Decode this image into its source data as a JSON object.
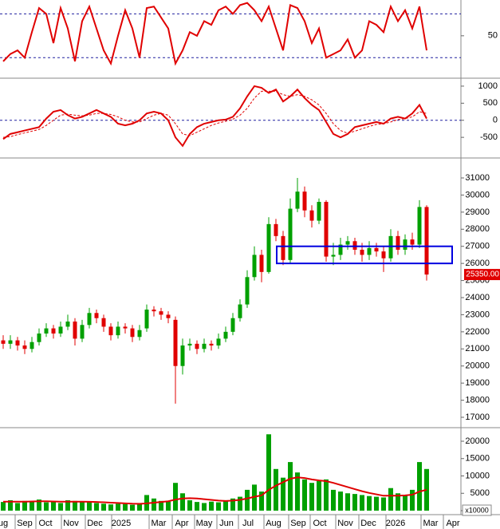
{
  "chart_data": [
    {
      "type": "line",
      "ylim": [
        -7,
        99
      ],
      "yticks": [
        50
      ],
      "levels": [
        20,
        80
      ],
      "series": [
        {
          "color": "#e00000",
          "values": [
            15,
            25,
            30,
            20,
            55,
            88,
            80,
            40,
            88,
            60,
            15,
            70,
            90,
            60,
            30,
            12,
            50,
            85,
            60,
            20,
            88,
            90,
            75,
            60,
            12,
            30,
            55,
            50,
            70,
            65,
            85,
            90,
            80,
            92,
            95,
            85,
            70,
            90,
            60,
            30,
            92,
            88,
            70,
            40,
            60,
            20,
            25,
            30,
            45,
            20,
            30,
            70,
            65,
            55,
            90,
            70,
            85,
            60,
            90,
            30
          ]
        }
      ]
    },
    {
      "type": "line",
      "ylim": [
        -1081,
        1209
      ],
      "yticks": [
        1000,
        500,
        0,
        -500
      ],
      "levels": [
        0
      ],
      "series": [
        {
          "color": "#e00000",
          "values": [
            -550,
            -400,
            -350,
            -300,
            -250,
            -200,
            50,
            250,
            300,
            150,
            50,
            100,
            200,
            300,
            200,
            100,
            -100,
            -150,
            -100,
            0,
            200,
            250,
            200,
            0,
            -500,
            -750,
            -400,
            -200,
            -100,
            -50,
            0,
            20,
            100,
            350,
            700,
            1000,
            950,
            800,
            900,
            550,
            700,
            900,
            650,
            450,
            300,
            -50,
            -400,
            -500,
            -400,
            -200,
            -150,
            -100,
            -50,
            -100,
            50,
            100,
            50,
            200,
            450,
            50
          ]
        },
        {
          "color": "#e00000",
          "dashed": true,
          "values": [
            -500,
            -480,
            -420,
            -370,
            -320,
            -270,
            -150,
            0,
            150,
            180,
            150,
            130,
            150,
            200,
            200,
            170,
            100,
            0,
            -50,
            -50,
            50,
            150,
            200,
            150,
            -100,
            -400,
            -450,
            -350,
            -250,
            -150,
            -80,
            -30,
            30,
            150,
            350,
            650,
            850,
            850,
            850,
            750,
            700,
            750,
            700,
            600,
            450,
            200,
            -100,
            -300,
            -380,
            -320,
            -250,
            -180,
            -120,
            -100,
            -50,
            20,
            50,
            100,
            250,
            200
          ]
        }
      ]
    },
    {
      "type": "candlestick",
      "ylim": [
        16440,
        32120
      ],
      "yticks": [
        31000,
        30000,
        29000,
        28000,
        27000,
        26000,
        25000,
        24000,
        23000,
        22000,
        21000,
        20000,
        19000,
        18000,
        17000
      ],
      "up_color": "#00a000",
      "down_color": "#e00000",
      "open": [
        21500,
        21300,
        21500,
        21200,
        21000,
        21400,
        21900,
        22200,
        21900,
        22300,
        22600,
        21600,
        22400,
        23100,
        22800,
        22300,
        21800,
        22300,
        22200,
        21700,
        22200,
        23300,
        23200,
        23000,
        22700,
        20000,
        21200,
        21300,
        21000,
        21300,
        21200,
        21600,
        22000,
        22800,
        23600,
        25200,
        26500,
        25500,
        28300,
        27600,
        26200,
        29200,
        30200,
        29100,
        28500,
        29600,
        26400,
        26500,
        27100,
        27300,
        26800,
        26500,
        26900,
        26700,
        26300,
        27600,
        26800,
        27400,
        27100,
        29300
      ],
      "high": [
        21800,
        21800,
        21700,
        21500,
        21700,
        22200,
        22500,
        22400,
        22600,
        23000,
        22800,
        22700,
        23400,
        23300,
        23000,
        22500,
        22600,
        22500,
        22400,
        22400,
        23600,
        23500,
        23400,
        23200,
        22900,
        21600,
        21600,
        21500,
        21600,
        21500,
        21900,
        22300,
        23100,
        23900,
        25600,
        27000,
        26800,
        28700,
        28600,
        27900,
        29800,
        31000,
        30500,
        29400,
        29800,
        29700,
        27200,
        27500,
        27600,
        27500,
        27200,
        27300,
        27200,
        27000,
        28000,
        27900,
        27700,
        27800,
        29700,
        29400
      ],
      "low": [
        21000,
        21000,
        20900,
        20700,
        20800,
        21200,
        21700,
        21600,
        21700,
        22100,
        21200,
        21400,
        22200,
        22500,
        22000,
        21500,
        21600,
        21900,
        21400,
        21500,
        22000,
        22900,
        22700,
        22500,
        17800,
        19500,
        20900,
        20700,
        20800,
        20900,
        21000,
        21400,
        21800,
        22600,
        23400,
        25000,
        24900,
        25400,
        27300,
        25900,
        26000,
        29000,
        28700,
        28100,
        28300,
        26100,
        25900,
        26200,
        26800,
        26500,
        26100,
        26200,
        26400,
        25500,
        26100,
        26500,
        26500,
        26800,
        26900,
        25000
      ],
      "close": [
        21300,
        21500,
        21200,
        21000,
        21400,
        21900,
        22200,
        21900,
        22300,
        22600,
        21600,
        22400,
        23100,
        22800,
        22300,
        21800,
        22300,
        22200,
        21700,
        22100,
        23300,
        23200,
        23000,
        22800,
        20000,
        21200,
        21300,
        21000,
        21300,
        21200,
        21600,
        22000,
        22800,
        23600,
        25200,
        26500,
        25500,
        28300,
        27600,
        26200,
        29200,
        30200,
        29100,
        28500,
        29600,
        26400,
        26500,
        27100,
        27300,
        26800,
        26500,
        26900,
        26700,
        26300,
        27600,
        26800,
        27400,
        27100,
        29300,
        25350
      ],
      "box": {
        "low": 26000,
        "high": 27000,
        "color": "#0000e0"
      },
      "last_price": {
        "value": 25350,
        "label": "25350.00"
      }
    },
    {
      "type": "bar",
      "ylim": [
        -1150,
        23680
      ],
      "yticks": [
        20000,
        15000,
        10000,
        5000,
        0
      ],
      "unit_label": "x10000",
      "color": "#00a000",
      "values": [
        2500,
        3000,
        2200,
        2800,
        2600,
        3200,
        2400,
        2600,
        2200,
        3000,
        2800,
        2500,
        2600,
        2200,
        2000,
        1800,
        2000,
        1900,
        1700,
        2200,
        4500,
        3500,
        2800,
        2600,
        8000,
        5000,
        3000,
        2500,
        2200,
        2600,
        2400,
        3000,
        3500,
        4000,
        6000,
        7500,
        5500,
        22000,
        12000,
        9500,
        14000,
        11000,
        9000,
        8000,
        8500,
        9000,
        6000,
        5500,
        5000,
        4800,
        4500,
        4200,
        4000,
        3800,
        6500,
        5000,
        4500,
        6000,
        14000,
        12000
      ],
      "series": [
        {
          "color": "#e00000",
          "values": [
            2600,
            2600,
            2600,
            2600,
            2650,
            2700,
            2700,
            2650,
            2600,
            2600,
            2600,
            2600,
            2550,
            2500,
            2400,
            2300,
            2200,
            2100,
            2000,
            1950,
            2100,
            2300,
            2500,
            2700,
            3200,
            3500,
            3600,
            3500,
            3300,
            3100,
            2900,
            2800,
            2900,
            3100,
            3500,
            4000,
            4400,
            6000,
            7200,
            8200,
            9200,
            9600,
            9400,
            9000,
            8700,
            8500,
            8000,
            7400,
            6800,
            6200,
            5600,
            5100,
            4700,
            4300,
            4300,
            4300,
            4400,
            4600,
            5500,
            6000
          ]
        }
      ]
    }
  ],
  "x_axis_labels": [
    "ug",
    "Sep",
    "Oct",
    "Nov",
    "Dec",
    "2025",
    "Mar",
    "Apr",
    "May",
    "Jun",
    "Jul",
    "Aug",
    "Sep",
    "Oct",
    "Nov",
    "Dec",
    "2026",
    "Mar",
    "Apr"
  ]
}
